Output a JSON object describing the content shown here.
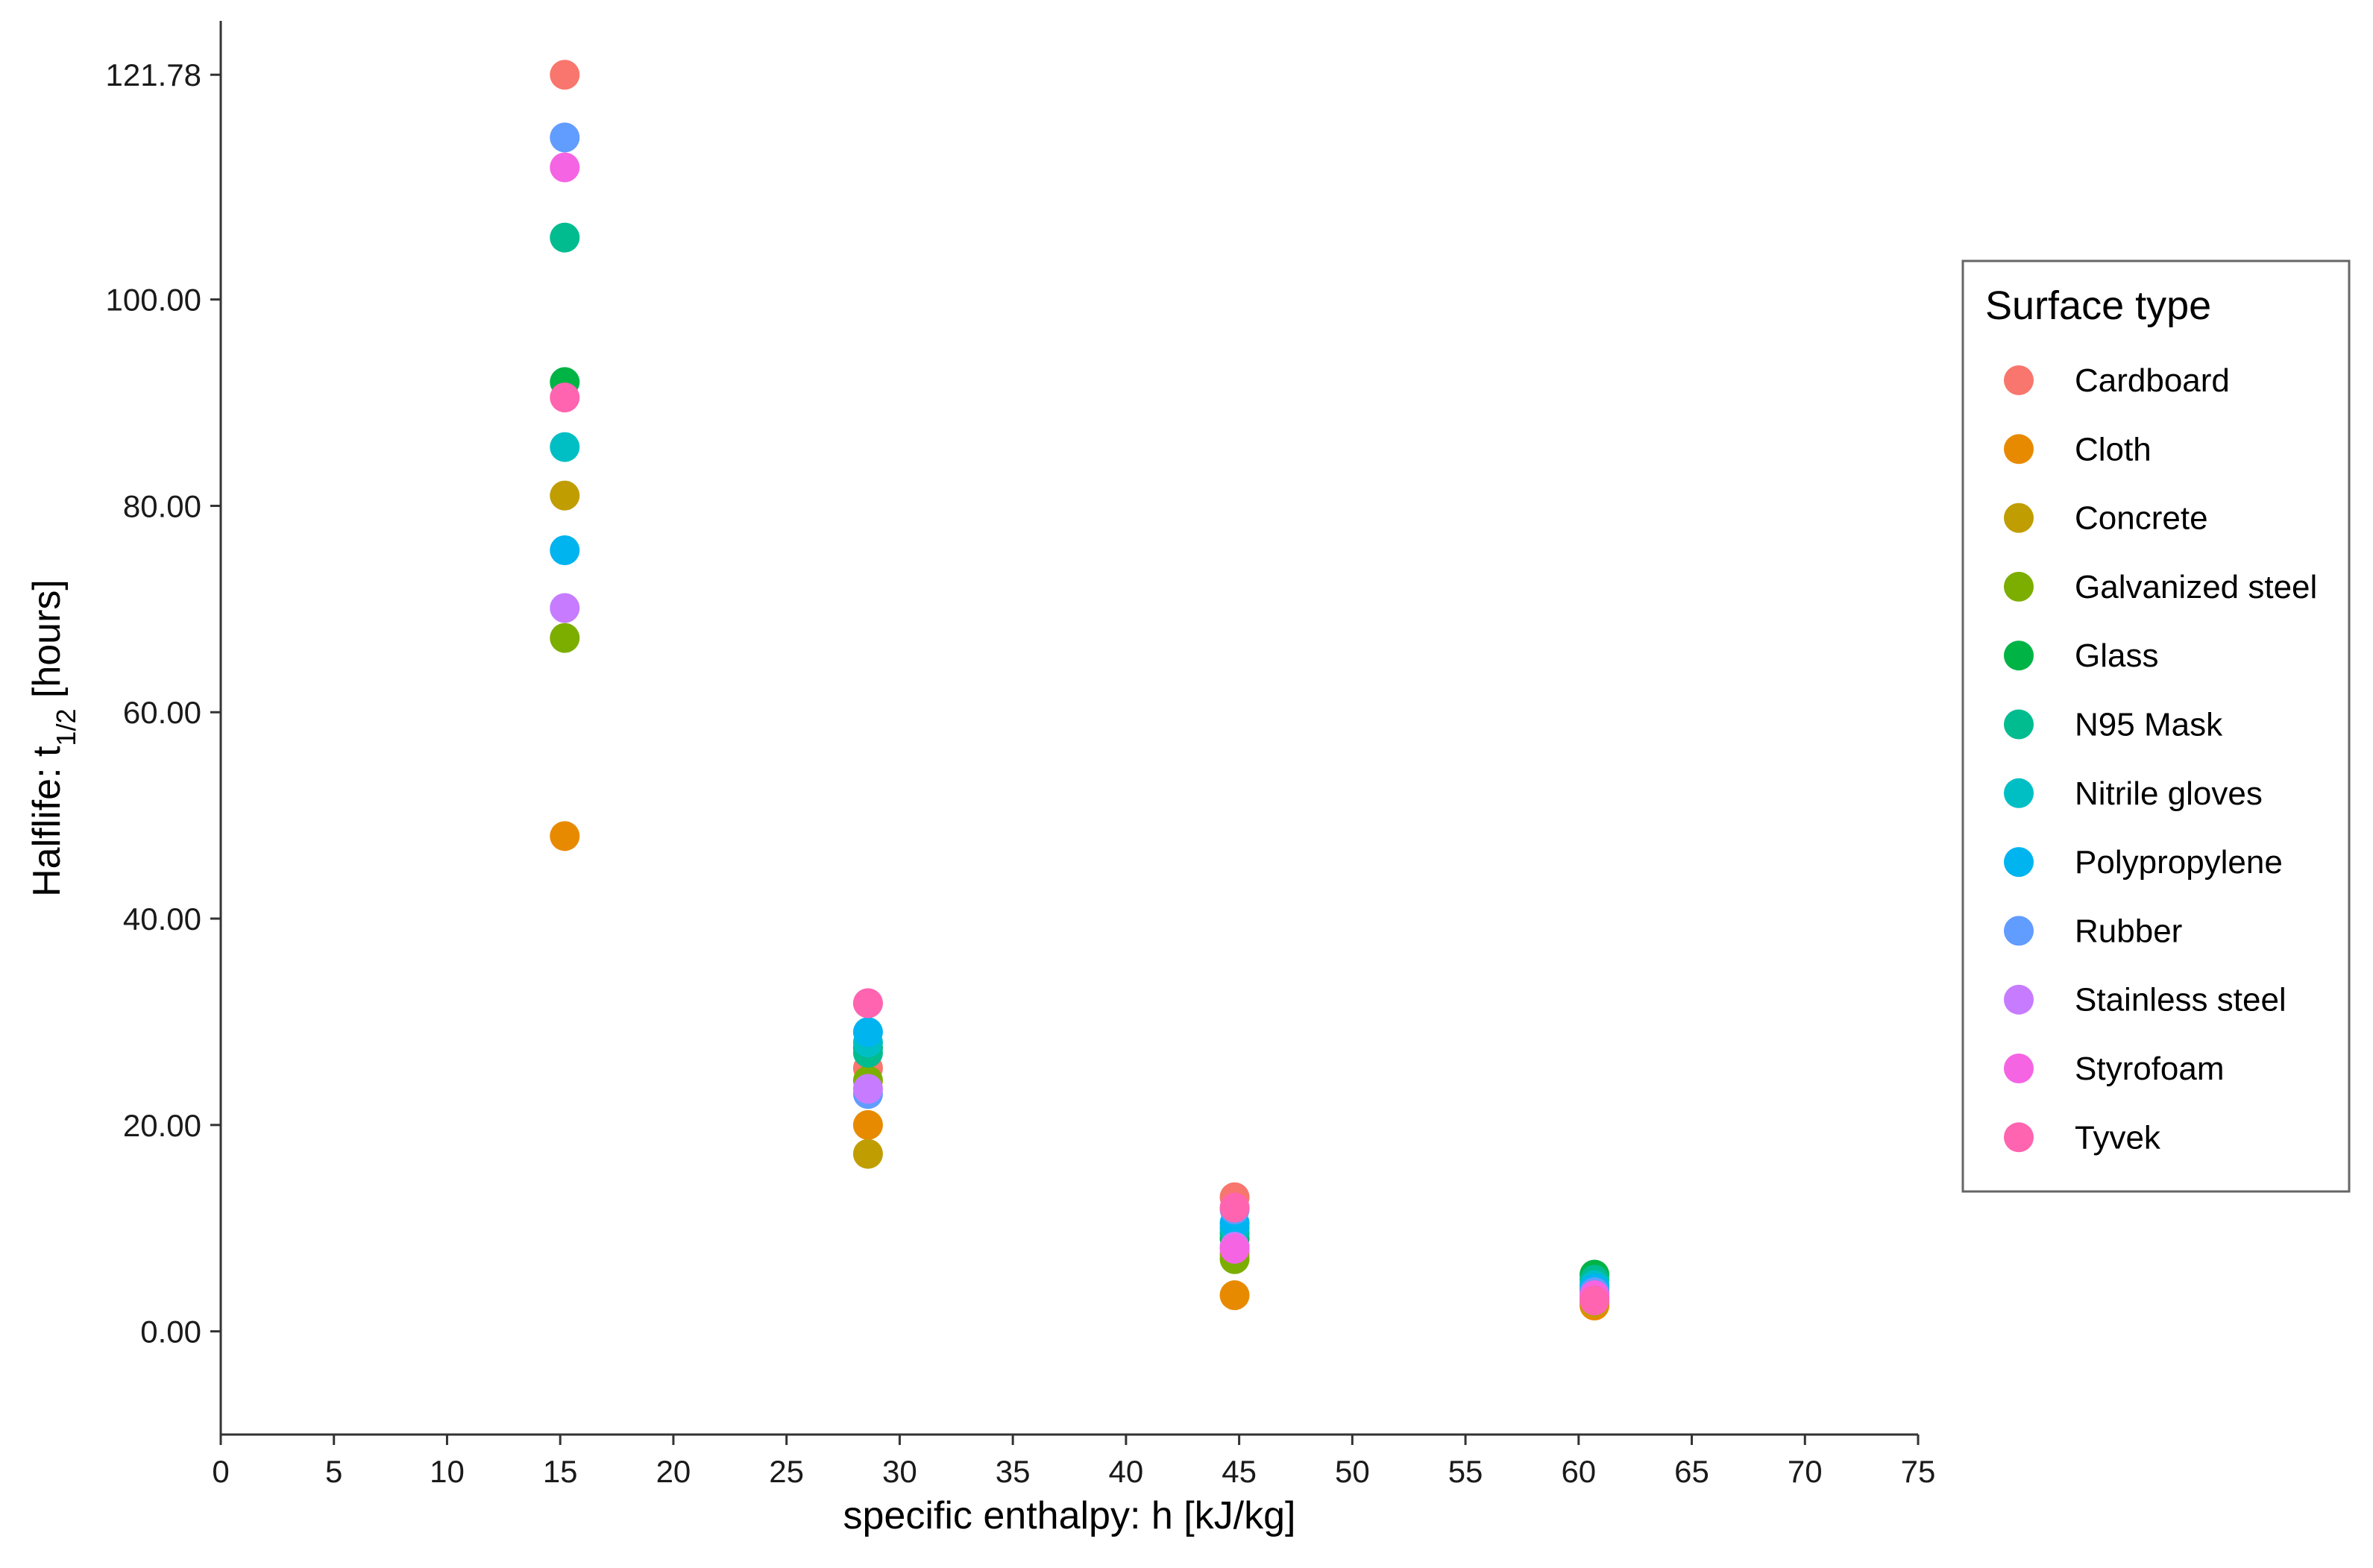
{
  "chart_data": {
    "type": "scatter",
    "title": "",
    "xlabel": "specific enthalpy: h [kJ/kg]",
    "ylabel_main": "Halflife:  t",
    "ylabel_sub": "1/2",
    "ylabel_suffix": " [hours]",
    "xlim": [
      0,
      75
    ],
    "ylim": [
      -10,
      127
    ],
    "x_ticks": [
      0,
      5,
      10,
      15,
      20,
      25,
      30,
      35,
      40,
      45,
      50,
      55,
      60,
      65,
      70,
      75
    ],
    "x_tick_labels": [
      "0",
      "5",
      "10",
      "15",
      "20",
      "25",
      "30",
      "35",
      "40",
      "45",
      "50",
      "55",
      "60",
      "65",
      "70",
      "75"
    ],
    "y_ticks": [
      0,
      20,
      40,
      60,
      80,
      100,
      121.78
    ],
    "y_tick_labels": [
      "0.00",
      "20.00",
      "40.00",
      "60.00",
      "80.00",
      "100.00",
      "121.78"
    ],
    "grid": false,
    "legend_title": "Surface type",
    "legend_position": "right",
    "series": [
      {
        "name": "Cardboard",
        "color": "#F8766D",
        "x": [
          15.2,
          28.6,
          44.8,
          60.7
        ],
        "y": [
          121.78,
          25.5,
          13.0,
          3.3
        ]
      },
      {
        "name": "Cloth",
        "color": "#E88A00",
        "x": [
          15.2,
          28.6,
          44.8,
          60.7
        ],
        "y": [
          48.0,
          20.0,
          3.5,
          2.5
        ]
      },
      {
        "name": "Concrete",
        "color": "#C09D00",
        "x": [
          15.2,
          28.6,
          44.8,
          60.7
        ],
        "y": [
          81.0,
          17.2,
          7.5,
          2.8
        ]
      },
      {
        "name": "Galvanized steel",
        "color": "#7CAE00",
        "x": [
          15.2,
          28.6,
          44.8,
          60.7
        ],
        "y": [
          67.2,
          24.3,
          7.0,
          4.0
        ]
      },
      {
        "name": "Glass",
        "color": "#00B345",
        "x": [
          15.2,
          28.6,
          44.8,
          60.7
        ],
        "y": [
          92.0,
          27.5,
          9.0,
          5.5
        ]
      },
      {
        "name": "N95 Mask",
        "color": "#00BC8F",
        "x": [
          15.2,
          28.6,
          44.8,
          60.7
        ],
        "y": [
          106.0,
          27.0,
          9.5,
          5.0
        ]
      },
      {
        "name": "Nitrile gloves",
        "color": "#00BFC4",
        "x": [
          15.2,
          28.6,
          44.8,
          60.7
        ],
        "y": [
          85.7,
          28.0,
          10.0,
          4.5
        ]
      },
      {
        "name": "Polypropylene",
        "color": "#00B4F0",
        "x": [
          15.2,
          28.6,
          44.8,
          60.7
        ],
        "y": [
          75.7,
          29.0,
          10.5,
          4.2
        ]
      },
      {
        "name": "Rubber",
        "color": "#619CFF",
        "x": [
          15.2,
          28.6,
          44.8,
          60.7
        ],
        "y": [
          115.7,
          23.0,
          11.8,
          3.8
        ]
      },
      {
        "name": "Stainless steel",
        "color": "#C77CFF",
        "x": [
          15.2,
          28.6,
          44.8,
          60.7
        ],
        "y": [
          70.1,
          23.5,
          8.2,
          3.2
        ]
      },
      {
        "name": "Styrofoam",
        "color": "#F564E3",
        "x": [
          15.2,
          28.6,
          44.8,
          60.7
        ],
        "y": [
          112.8,
          31.8,
          8.0,
          3.5
        ]
      },
      {
        "name": "Tyvek",
        "color": "#FF64B0",
        "x": [
          15.2,
          28.6,
          44.8,
          60.7
        ],
        "y": [
          90.5,
          31.8,
          12.0,
          3.0
        ]
      }
    ]
  }
}
